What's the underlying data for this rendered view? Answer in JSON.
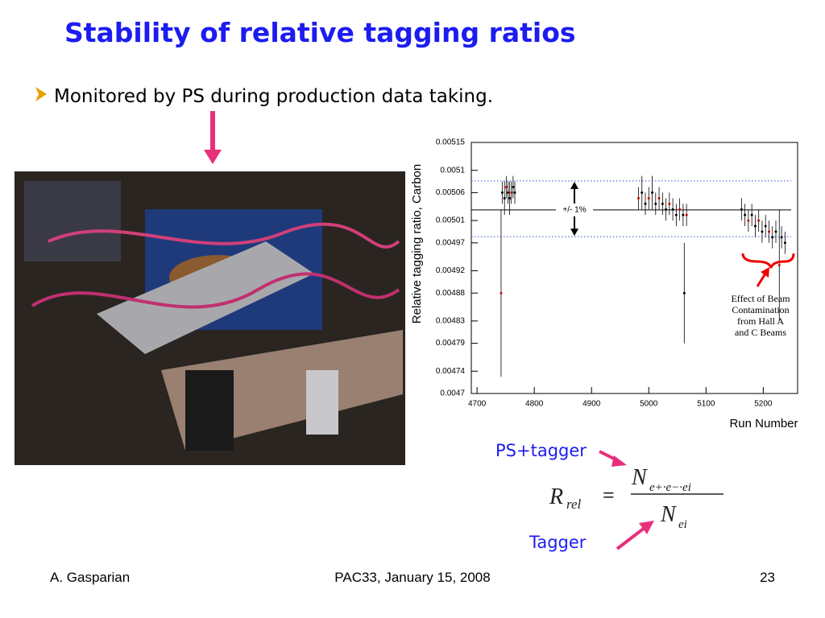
{
  "title": "Stability of relative tagging ratios",
  "bullet": "Monitored by PS during production data taking.",
  "chart_data": {
    "type": "scatter",
    "y_label": "Relative tagging ratio, Carbon",
    "x_label": "Run Number",
    "xlim": [
      4690,
      5260
    ],
    "xticks": [
      4700,
      4800,
      4900,
      5000,
      5100,
      5200
    ],
    "ylim": [
      0.0047,
      0.00515
    ],
    "yticks": [
      0.0047,
      0.00474,
      0.00479,
      0.00483,
      0.00488,
      0.00492,
      0.00497,
      0.00501,
      0.00506,
      0.0051,
      0.00515
    ],
    "color": "#000000",
    "x": [
      4742,
      4744,
      4748,
      4751,
      4754,
      4757,
      4760,
      4763,
      4766,
      4982,
      4988,
      4994,
      5000,
      5006,
      5012,
      5018,
      5024,
      5030,
      5036,
      5042,
      5048,
      5054,
      5060,
      5062,
      5066,
      5162,
      5168,
      5174,
      5180,
      5186,
      5192,
      5198,
      5204,
      5210,
      5216,
      5222,
      5228,
      5232,
      5238
    ],
    "values": [
      0.00488,
      0.00506,
      0.00505,
      0.00507,
      0.00506,
      0.00505,
      0.00506,
      0.00507,
      0.00506,
      0.00505,
      0.00506,
      0.00504,
      0.00505,
      0.00506,
      0.00504,
      0.00505,
      0.00504,
      0.00503,
      0.00504,
      0.00503,
      0.00502,
      0.00503,
      0.00502,
      0.00488,
      0.00502,
      0.00503,
      0.00502,
      0.00501,
      0.00502,
      0.005,
      0.00501,
      0.00499,
      0.005,
      0.00499,
      0.00498,
      0.00499,
      0.00493,
      0.00498,
      0.00497
    ],
    "errors": [
      0.00015,
      2e-05,
      3e-05,
      2e-05,
      2e-05,
      3e-05,
      2e-05,
      2e-05,
      2e-05,
      2e-05,
      3e-05,
      2e-05,
      2e-05,
      3e-05,
      2e-05,
      2e-05,
      2e-05,
      2e-05,
      2e-05,
      2e-05,
      2e-05,
      2e-05,
      2e-05,
      9e-05,
      2e-05,
      2e-05,
      2e-05,
      2e-05,
      2e-05,
      2e-05,
      2e-05,
      2e-05,
      2e-05,
      2e-05,
      2e-05,
      2e-05,
      0.0001,
      2e-05,
      2e-05
    ],
    "reference_lines": [
      0.005081,
      0.005029,
      0.004981
    ],
    "band_annotation": "+/- 1%",
    "note": [
      "Effect of Beam",
      "Contamination",
      "from Hall A",
      "and C Beams"
    ]
  },
  "formula": {
    "label_top": "PS+tagger",
    "label_bottom": "Tagger",
    "lhs": "R",
    "lhs_sub": "rel",
    "numerator": "N",
    "numerator_sub": "e+·e−·ei",
    "denominator": "N",
    "denominator_sub": "ei"
  },
  "footer": {
    "author": "A. Gasparian",
    "event": "PAC33, January 15, 2008",
    "page": "23"
  }
}
